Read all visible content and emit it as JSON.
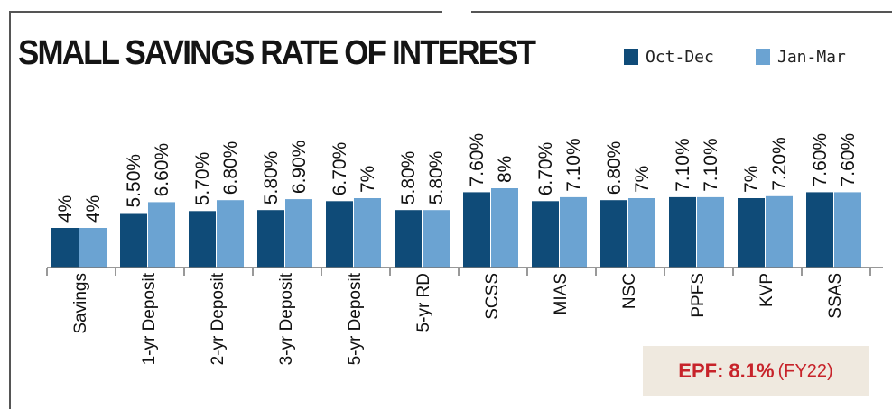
{
  "chart_data": {
    "type": "bar",
    "title": "SMALL SAVINGS RATE OF INTEREST",
    "xlabel": "",
    "ylabel": "",
    "ylim": [
      0,
      20
    ],
    "grid": false,
    "legend_position": "top-right",
    "categories": [
      "Savings",
      "1-yr Deposit",
      "2-yr Deposit",
      "3-yr Deposit",
      "5-yr Deposit",
      "5-yr RD",
      "SCSS",
      "MIAS",
      "NSC",
      "PPFS",
      "KVP",
      "SSAS"
    ],
    "series": [
      {
        "name": "Oct-Dec",
        "color": "#0f4b78",
        "values": [
          4,
          5.5,
          5.7,
          5.8,
          6.7,
          5.8,
          7.6,
          6.7,
          6.8,
          7.1,
          7,
          7.6
        ],
        "labels": [
          "4%",
          "5.50%",
          "5.70%",
          "5.80%",
          "6.70%",
          "5.80%",
          "7.60%",
          "6.70%",
          "6.80%",
          "7.10%",
          "7%",
          "7.60%"
        ]
      },
      {
        "name": "Jan-Mar",
        "color": "#6ba3d2",
        "values": [
          4,
          6.6,
          6.8,
          6.9,
          7,
          5.8,
          8,
          7.1,
          7,
          7.1,
          7.2,
          7.6
        ],
        "labels": [
          "4%",
          "6.60%",
          "6.80%",
          "6.90%",
          "7%",
          "5.80%",
          "8%",
          "7.10%",
          "7%",
          "7.10%",
          "7.20%",
          "7.60%"
        ]
      }
    ]
  },
  "annotation": {
    "label": "EPF:",
    "value": "8.1%",
    "note": "(FY22)"
  }
}
